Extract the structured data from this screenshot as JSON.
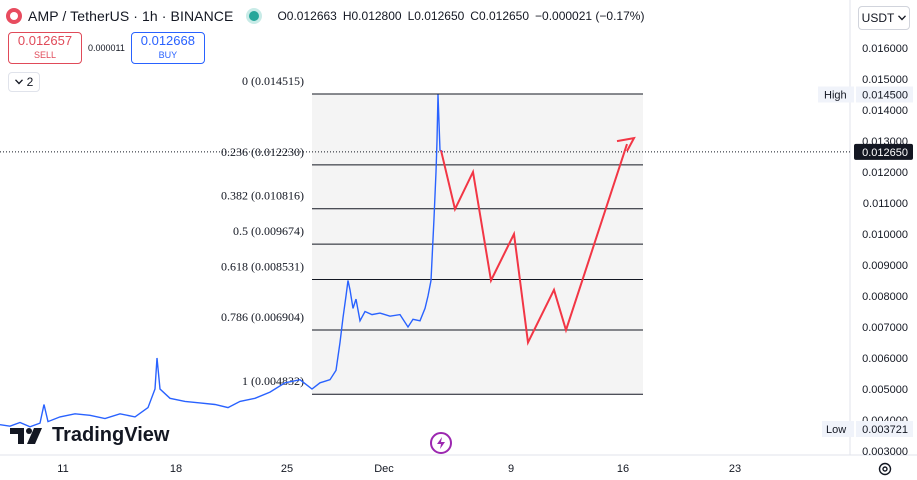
{
  "header": {
    "symbol": "AMP / TetherUS · 1h · BINANCE",
    "open": "O0.012663",
    "high": "H0.012800",
    "low": "L0.012650",
    "close": "C0.012650",
    "change": "−0.000021 (−0.17%)"
  },
  "trade": {
    "sell_price": "0.012657",
    "sell_label": "SELL",
    "spread": "0.000011",
    "buy_price": "0.012668",
    "buy_label": "BUY"
  },
  "indicators_toggle": {
    "count": "2"
  },
  "currency_select": {
    "value": "USDT"
  },
  "price_axis": {
    "ticks": [
      "0.016000",
      "0.015000",
      "0.014000",
      "0.013000",
      "0.012000",
      "0.011000",
      "0.010000",
      "0.009000",
      "0.008000",
      "0.007000",
      "0.006000",
      "0.005000",
      "0.004000",
      "0.003000"
    ],
    "high_label": "High",
    "high_value": "0.014500",
    "current_value": "0.012650",
    "low_label": "Low",
    "low_value": "0.003721"
  },
  "time_axis": {
    "ticks": [
      "11",
      "18",
      "25",
      "Dec",
      "9",
      "16",
      "23"
    ]
  },
  "fib_levels": [
    {
      "label": "0 (0.014515)",
      "price": 0.014515
    },
    {
      "label": "0.236 (0.012230)",
      "price": 0.01223
    },
    {
      "label": "0.382 (0.010816)",
      "price": 0.010816
    },
    {
      "label": "0.5 (0.009674)",
      "price": 0.009674
    },
    {
      "label": "0.618 (0.008531)",
      "price": 0.008531
    },
    {
      "label": "0.786 (0.006904)",
      "price": 0.006904
    },
    {
      "label": "1 (0.004832)",
      "price": 0.004832
    }
  ],
  "branding": {
    "name": "TradingView"
  },
  "colors": {
    "price_line": "#2962ff",
    "projection": "#f23645",
    "sell": "#e04a59",
    "buy": "#2962ff",
    "live": "#26a69a"
  },
  "icons": {
    "gear": "gear-icon",
    "bolt": "lightning-icon",
    "chevron": "chevron-down-icon"
  }
}
